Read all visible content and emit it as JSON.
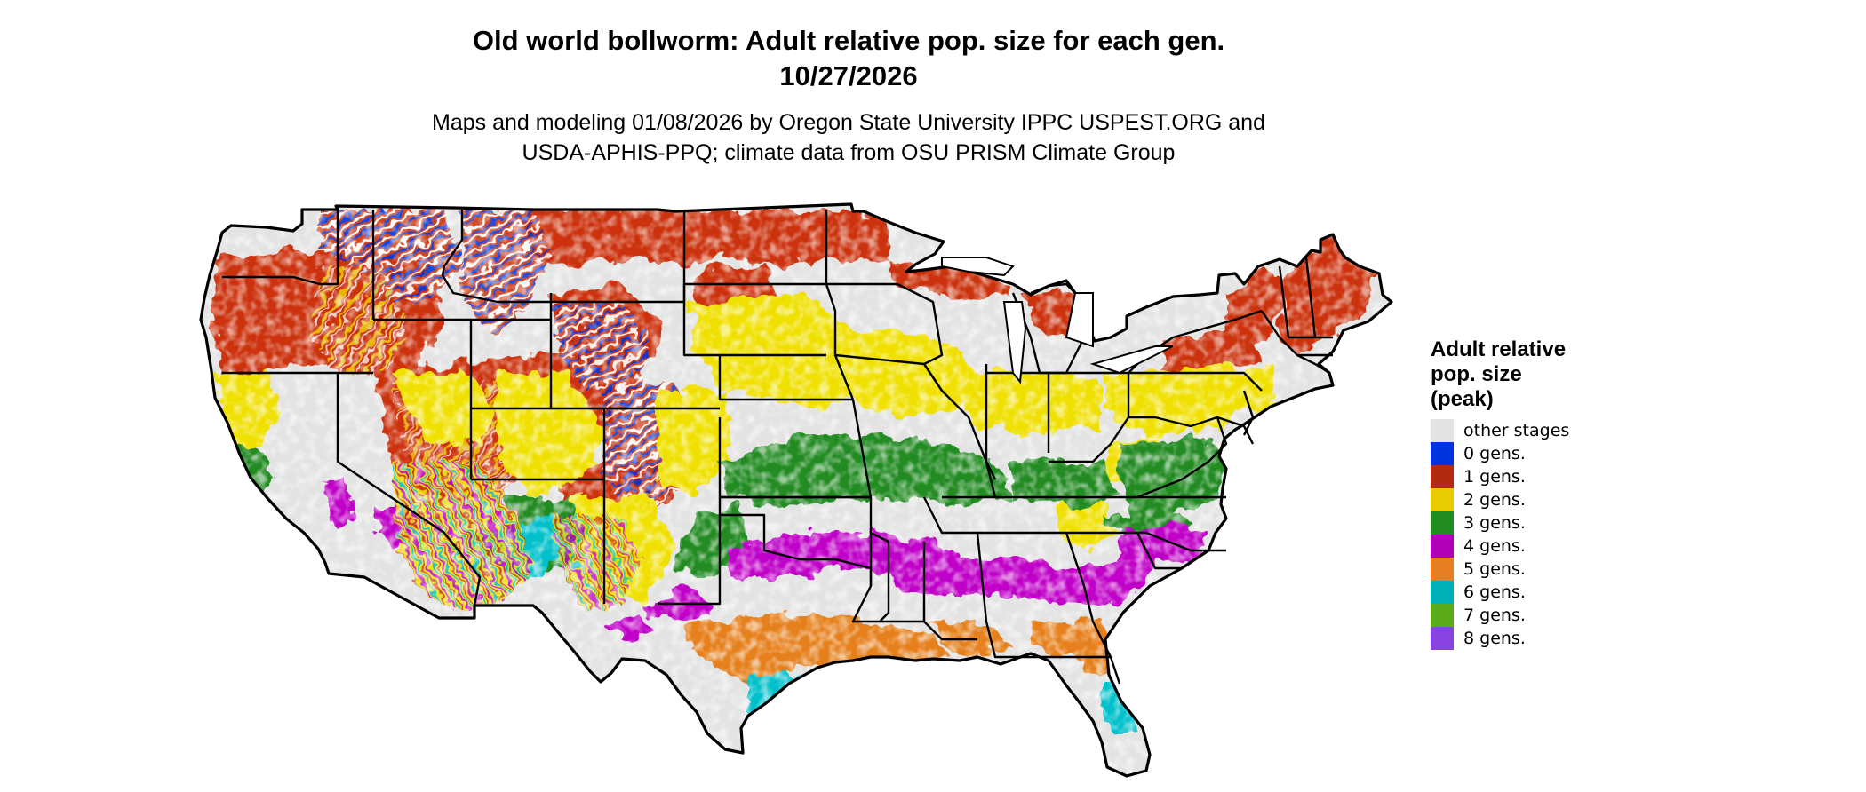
{
  "title": {
    "line1": "Old world bollworm: Adult relative pop. size for each gen.",
    "line2": "10/27/2026"
  },
  "subtitle": {
    "line1": "Maps and modeling 01/08/2026 by Oregon State University IPPC USPEST.ORG and",
    "line2": "USDA-APHIS-PPQ; climate data from OSU PRISM Climate Group"
  },
  "legend": {
    "title_lines": [
      "Adult relative",
      "pop. size",
      "(peak)"
    ],
    "items": [
      {
        "label": "other stages",
        "color": "#e3e3e3"
      },
      {
        "label": "0 gens.",
        "color": "#0033dd"
      },
      {
        "label": "1 gens.",
        "color": "#b22a12"
      },
      {
        "label": "2 gens.",
        "color": "#e6cc00"
      },
      {
        "label": "3 gens.",
        "color": "#228b22"
      },
      {
        "label": "4 gens.",
        "color": "#b000b8"
      },
      {
        "label": "5 gens.",
        "color": "#e67e22"
      },
      {
        "label": "6 gens.",
        "color": "#00b0b8"
      },
      {
        "label": "7 gens.",
        "color": "#5aaa1a"
      },
      {
        "label": "8 gens.",
        "color": "#8844e0"
      }
    ]
  },
  "palette": {
    "background": "#e3e3e3",
    "gen0": "#0033dd",
    "gen1": "#cc3311",
    "gen1_dark": "#a01e0a",
    "gen2": "#f0e000",
    "gen3": "#228b22",
    "gen4": "#c000c8",
    "gen5": "#e6801e",
    "gen6": "#00c0cc",
    "gen7": "#5aaa1a",
    "border": "#000000"
  }
}
